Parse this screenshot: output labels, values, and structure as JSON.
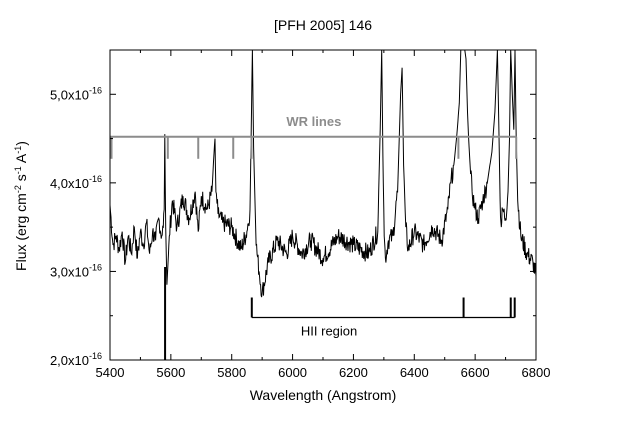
{
  "chart_data": {
    "type": "line",
    "title": "[PFH 2005] 146",
    "xlabel": "Wavelength (Angstrom)",
    "ylabel": {
      "base": "Flux (erg cm",
      "exp1": "-2",
      "mid1": " s",
      "exp2": "-1",
      "mid2": " A",
      "exp3": "-1",
      "end": ")"
    },
    "xlim": [
      5400,
      6800
    ],
    "ylim": [
      2e-16,
      5.5e-16
    ],
    "log_scale": false,
    "grid": false,
    "x_ticks": [
      5400,
      5600,
      5800,
      6000,
      6200,
      6400,
      6600,
      6800
    ],
    "x_tick_labels": [
      "5400",
      "5600",
      "5800",
      "6000",
      "6200",
      "6400",
      "6600",
      "6800"
    ],
    "y_ticks": [
      2e-16,
      3e-16,
      4e-16,
      5e-16
    ],
    "y_tick_labels": [
      {
        "mantissa": "2,0x10",
        "exponent": "-16"
      },
      {
        "mantissa": "3,0x10",
        "exponent": "-16"
      },
      {
        "mantissa": "4,0x10",
        "exponent": "-16"
      },
      {
        "mantissa": "5,0x10",
        "exponent": "-16"
      }
    ],
    "line_color": "#000000",
    "series": [
      {
        "x": [
          5400,
          5410,
          5420,
          5430,
          5440,
          5450,
          5460,
          5470,
          5480,
          5490,
          5500,
          5510,
          5520,
          5530,
          5540,
          5550,
          5560,
          5570,
          5575,
          5578,
          5580,
          5583,
          5587,
          5595,
          5605,
          5620,
          5640,
          5660,
          5680,
          5690,
          5700,
          5720,
          5735,
          5742,
          5745,
          5748,
          5755,
          5770,
          5800,
          5830,
          5850,
          5860,
          5865,
          5868,
          5872,
          5880,
          5890,
          5900,
          5920,
          5950,
          5980,
          6000,
          6030,
          6060,
          6100,
          6150,
          6200,
          6250,
          6280,
          6288,
          6293,
          6297,
          6301,
          6305,
          6315,
          6330,
          6345,
          6355,
          6360,
          6365,
          6372,
          6380,
          6400,
          6430,
          6460,
          6490,
          6510,
          6520,
          6530,
          6540,
          6548,
          6553,
          6558,
          6562,
          6566,
          6570,
          6575,
          6580,
          6585,
          6590,
          6600,
          6610,
          6625,
          6640,
          6655,
          6665,
          6673,
          6678,
          6682,
          6686,
          6690,
          6700,
          6708,
          6713,
          6717,
          6722,
          6727,
          6731,
          6735,
          6740,
          6750,
          6770,
          6790,
          6800
        ],
        "y": [
          3.75e-16,
          3.3e-16,
          3.4e-16,
          3.25e-16,
          3.45e-16,
          3.1e-16,
          3.4e-16,
          3.2e-16,
          3.5e-16,
          3.15e-16,
          3.45e-16,
          3.3e-16,
          3.55e-16,
          3.2e-16,
          3.45e-16,
          3.35e-16,
          3.6e-16,
          3.4e-16,
          3.5e-16,
          3.7e-16,
          4.55e-16,
          3.5e-16,
          2.85e-16,
          3.4e-16,
          3.8e-16,
          3.5e-16,
          3.85e-16,
          3.6e-16,
          3.9e-16,
          3.45e-16,
          3.85e-16,
          3.7e-16,
          3.9e-16,
          4.35e-16,
          4.5e-16,
          3.9e-16,
          3.65e-16,
          3.55e-16,
          3.5e-16,
          3.25e-16,
          3.45e-16,
          3.7e-16,
          4.8e-16,
          5.5e-16,
          4.4e-16,
          3.3e-16,
          3e-16,
          2.75e-16,
          3.1e-16,
          3.35e-16,
          3.2e-16,
          3.4e-16,
          3.2e-16,
          3.35e-16,
          3.15e-16,
          3.4e-16,
          3.3e-16,
          3.2e-16,
          3.45e-16,
          4.6e-16,
          5.5e-16,
          4.3e-16,
          3.4e-16,
          3.15e-16,
          3.35e-16,
          3.4e-16,
          3.9e-16,
          5e-16,
          5.3e-16,
          4.2e-16,
          3.5e-16,
          3.25e-16,
          3.45e-16,
          3.3e-16,
          3.5e-16,
          3.35e-16,
          3.7e-16,
          4e-16,
          4.2e-16,
          4.55e-16,
          4.9e-16,
          5.5e-16,
          5.5e-16,
          5.5e-16,
          5.5e-16,
          5.4e-16,
          4.8e-16,
          4.4e-16,
          4.1e-16,
          3.9e-16,
          3.7e-16,
          3.6e-16,
          3.8e-16,
          4e-16,
          4.35e-16,
          4.8e-16,
          5.5e-16,
          4.6e-16,
          3.8e-16,
          3.5e-16,
          3.7e-16,
          3.6e-16,
          3.9e-16,
          4.5e-16,
          5.5e-16,
          5e-16,
          4.6e-16,
          5.5e-16,
          4.5e-16,
          3.8e-16,
          3.4e-16,
          3.2e-16,
          3.1e-16,
          2.95e-16
        ]
      }
    ],
    "absorption_feature": {
      "x": 5581,
      "y_top": 3.05e-16,
      "y_bottom": 2e-16
    },
    "annotations": {
      "wr": {
        "label": "WR lines",
        "y": 4.52e-16,
        "x_start": 5400,
        "x_end": 6735,
        "tick_positions": [
          5405,
          5590,
          5690,
          5805,
          5865,
          6545,
          6735
        ],
        "color": "#8c8c8c"
      },
      "hii": {
        "label": "HII region",
        "y": 2.48e-16,
        "x_start": 5866,
        "x_end": 6730,
        "tick_positions": [
          5866,
          6562,
          6717,
          6730
        ],
        "color": "#000000"
      }
    }
  }
}
